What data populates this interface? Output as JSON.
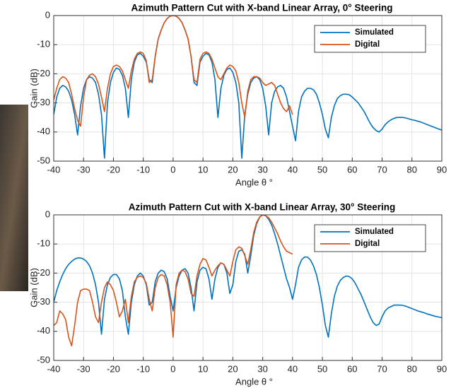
{
  "chart_data": [
    {
      "type": "line",
      "title": "Azimuth Pattern Cut with X-band Linear Array, 0° Steering",
      "x_label": "Angle θ °",
      "y_label": "Gain (dB)",
      "x": [
        -40,
        -39,
        -38,
        -37,
        -36,
        -35,
        -34,
        -33,
        -32,
        -31,
        -30,
        -29,
        -28,
        -27,
        -26,
        -25,
        -24,
        -23,
        -22,
        -21,
        -20,
        -19,
        -18,
        -17,
        -16,
        -15,
        -14,
        -13,
        -12,
        -11,
        -10,
        -9,
        -8,
        -7,
        -6,
        -5,
        -4,
        -3,
        -2,
        -1,
        0,
        1,
        2,
        3,
        4,
        5,
        6,
        7,
        8,
        9,
        10,
        11,
        12,
        13,
        14,
        15,
        16,
        17,
        18,
        19,
        20,
        21,
        22,
        23,
        24,
        25,
        26,
        27,
        28,
        29,
        30,
        31,
        32,
        33,
        34,
        35,
        36,
        37,
        38,
        39,
        40,
        41,
        42,
        43,
        44,
        45,
        46,
        47,
        48,
        49,
        50,
        51,
        52,
        53,
        54,
        55,
        56,
        57,
        58,
        59,
        60,
        61,
        62,
        63,
        64,
        65,
        66,
        67,
        68,
        69,
        70,
        71,
        72,
        73,
        74,
        75,
        76,
        77,
        78,
        79,
        80,
        81,
        82,
        83,
        84,
        85,
        86,
        87,
        88,
        89,
        90
      ],
      "series": [
        {
          "name": "Simulated",
          "color": "#0072bd",
          "values": [
            -34,
            -28,
            -25,
            -24,
            -24.5,
            -26,
            -29,
            -34,
            -41,
            -31,
            -25,
            -22,
            -21,
            -21.5,
            -23,
            -27,
            -34,
            -49,
            -30,
            -23,
            -19.5,
            -18,
            -18.5,
            -20.5,
            -25,
            -35,
            -22,
            -16,
            -13.5,
            -13,
            -14,
            -16,
            -22,
            -23,
            -14,
            -8,
            -5,
            -2.5,
            -1,
            -0.2,
            0,
            -0.2,
            -1,
            -2.5,
            -5,
            -8,
            -14,
            -23,
            -24,
            -16,
            -14,
            -13,
            -13.5,
            -16,
            -22,
            -35,
            -25,
            -20.5,
            -18.5,
            -18,
            -19.5,
            -23,
            -30,
            -49,
            -34,
            -27,
            -23,
            -21.5,
            -21,
            -22,
            -25,
            -31,
            -41,
            -30,
            -26,
            -24.5,
            -24,
            -25,
            -28,
            -33,
            -38,
            -43,
            -33,
            -28,
            -26,
            -25,
            -25,
            -25.5,
            -27,
            -30,
            -34,
            -39,
            -42,
            -35,
            -31,
            -28.5,
            -27.5,
            -27,
            -27,
            -27.2,
            -28,
            -29,
            -30,
            -31.5,
            -33,
            -35,
            -37,
            -38.5,
            -39.5,
            -40,
            -39,
            -37.5,
            -36.5,
            -35.8,
            -35.3,
            -35,
            -35,
            -35,
            -35.2,
            -35.5,
            -35.8,
            -36,
            -36.3,
            -36.6,
            -37,
            -37.4,
            -37.8,
            -38.2,
            -38.6,
            -39,
            -39.3
          ]
        },
        {
          "name": "Digital",
          "color": "#d95319",
          "values": [
            -29,
            -25,
            -22,
            -21,
            -21.5,
            -23,
            -27,
            -32,
            -36,
            -38,
            -28,
            -22,
            -20.5,
            -20,
            -21,
            -23.5,
            -28,
            -33,
            -25,
            -20,
            -17.5,
            -17,
            -17.5,
            -19,
            -22,
            -25,
            -19,
            -15,
            -13,
            -12.5,
            -13,
            -15.5,
            -23,
            -22,
            -14,
            -8,
            -5,
            -2.5,
            -1,
            -0.2,
            0,
            -0.2,
            -1,
            -2.5,
            -5,
            -8,
            -14,
            -22,
            -23,
            -15,
            -13,
            -12.5,
            -13,
            -15,
            -18,
            -21,
            -22,
            -20,
            -18,
            -17,
            -17.5,
            -19,
            -23,
            -30,
            -35,
            -26,
            -22,
            -21,
            -21,
            -21.5,
            -23,
            -24,
            -23.5,
            -23,
            -24,
            -27,
            -30,
            -32,
            -33,
            -31,
            -34,
            null,
            null,
            null,
            null,
            null,
            null,
            null,
            null,
            null,
            null,
            null,
            null,
            null,
            null,
            null,
            null,
            null,
            null,
            null,
            null,
            null,
            null,
            null,
            null,
            null,
            null,
            null,
            null,
            null,
            null,
            null,
            null,
            null,
            null,
            null,
            null,
            null,
            null,
            null,
            null,
            null,
            null,
            null,
            null,
            null,
            null,
            null,
            null,
            null,
            null
          ]
        }
      ],
      "xlim": [
        -40,
        90
      ],
      "xticks": [
        -40,
        -30,
        -20,
        -10,
        0,
        10,
        20,
        30,
        40,
        50,
        60,
        70,
        80,
        90
      ],
      "ylim": [
        -50,
        0
      ],
      "yticks": [
        -50,
        -40,
        -30,
        -20,
        -10,
        0
      ],
      "grid": true,
      "legend": "upper right"
    },
    {
      "type": "line",
      "title": "Azimuth Pattern Cut with X-band Linear Array, 30° Steering",
      "x_label": "Angle θ °",
      "y_label": "Gain (dB)",
      "x": [
        -40,
        -39,
        -38,
        -37,
        -36,
        -35,
        -34,
        -33,
        -32,
        -31,
        -30,
        -29,
        -28,
        -27,
        -26,
        -25,
        -24,
        -23,
        -22,
        -21,
        -20,
        -19,
        -18,
        -17,
        -16,
        -15,
        -14,
        -13,
        -12,
        -11,
        -10,
        -9,
        -8,
        -7,
        -6,
        -5,
        -4,
        -3,
        -2,
        -1,
        0,
        1,
        2,
        3,
        4,
        5,
        6,
        7,
        8,
        9,
        10,
        11,
        12,
        13,
        14,
        15,
        16,
        17,
        18,
        19,
        20,
        21,
        22,
        23,
        24,
        25,
        26,
        27,
        28,
        29,
        30,
        31,
        32,
        33,
        34,
        35,
        36,
        37,
        38,
        39,
        40,
        41,
        42,
        43,
        44,
        45,
        46,
        47,
        48,
        49,
        50,
        51,
        52,
        53,
        54,
        55,
        56,
        57,
        58,
        59,
        60,
        61,
        62,
        63,
        64,
        65,
        66,
        67,
        68,
        69,
        70,
        71,
        72,
        73,
        74,
        75,
        76,
        77,
        78,
        79,
        80,
        81,
        82,
        83,
        84,
        85,
        86,
        87,
        88,
        89,
        90
      ],
      "series": [
        {
          "name": "Simulated",
          "color": "#0072bd",
          "values": [
            -30,
            -26,
            -23,
            -20.5,
            -18.5,
            -17,
            -16,
            -15.2,
            -14.8,
            -14.8,
            -15.2,
            -16,
            -17.5,
            -20,
            -24,
            -30,
            -41,
            -29,
            -24,
            -21.5,
            -20.5,
            -20.5,
            -22,
            -26,
            -35,
            -41,
            -30,
            -24,
            -21,
            -20,
            -21,
            -24,
            -31,
            -30,
            -23,
            -20,
            -19,
            -19.5,
            -22,
            -28,
            -33,
            -25,
            -21,
            -19,
            -18.5,
            -20,
            -25,
            -33,
            -23,
            -19,
            -18,
            -18.5,
            -22,
            -29,
            -22,
            -18,
            -16.5,
            -17,
            -20,
            -27,
            -24,
            -16,
            -12.5,
            -12,
            -13.5,
            -20,
            -14,
            -7,
            -3,
            -0.8,
            0,
            -0.3,
            -1.5,
            -3.5,
            -6.5,
            -10,
            -14,
            -18,
            -22,
            -25,
            -29,
            -24,
            -18,
            -15.5,
            -14.5,
            -14.5,
            -15.5,
            -17.5,
            -20.5,
            -25,
            -31,
            -38,
            -42,
            -34,
            -28,
            -24.5,
            -22.5,
            -21.5,
            -21,
            -21.2,
            -22,
            -23.5,
            -25.5,
            -27.5,
            -30,
            -32.5,
            -35,
            -37,
            -38,
            -37.5,
            -35,
            -33,
            -32,
            -31.5,
            -31,
            -31,
            -31,
            -31.1,
            -31.4,
            -31.8,
            -32.2,
            -32.6,
            -33,
            -33.3,
            -33.6,
            -34,
            -34.3,
            -34.6,
            -34.9,
            -35.1,
            -35.3
          ]
        },
        {
          "name": "Digital",
          "color": "#d95319",
          "values": [
            -38,
            -37,
            -33,
            -34,
            -36,
            -42,
            -45,
            -38,
            -30,
            -26,
            -25.5,
            -25.5,
            -26,
            -30,
            -35,
            -37,
            -30,
            -25,
            -23,
            -24,
            -26,
            -30,
            -35,
            -33,
            -29,
            -37,
            -28,
            -23,
            -21.5,
            -21,
            -21.5,
            -23.5,
            -29,
            -33,
            -25,
            -21.5,
            -20.5,
            -21,
            -24,
            -30,
            -42,
            -24,
            -20,
            -19,
            -19.5,
            -22,
            -27,
            -28,
            -21,
            -17,
            -15,
            -15.5,
            -18,
            -21,
            -19,
            -17.5,
            -16.5,
            -17,
            -19,
            -21,
            -16,
            -12,
            -11,
            -11.5,
            -14,
            -17,
            -12,
            -6,
            -2.5,
            -0.7,
            0,
            -0.3,
            -1,
            -2.5,
            -4.5,
            -6.5,
            -9,
            -11,
            -12.5,
            -13,
            -13.5,
            null,
            null,
            null,
            null,
            null,
            null,
            null,
            null,
            null,
            null,
            null,
            null,
            null,
            null,
            null,
            null,
            null,
            null,
            null,
            null,
            null,
            null,
            null,
            null,
            null,
            null,
            null,
            null,
            null,
            null,
            null,
            null,
            null,
            null,
            null,
            null,
            null,
            null,
            null,
            null,
            null,
            null,
            null,
            null,
            null,
            null,
            null,
            null,
            null,
            null
          ]
        }
      ],
      "xlim": [
        -40,
        90
      ],
      "xticks": [
        -40,
        -30,
        -20,
        -10,
        0,
        10,
        20,
        30,
        40,
        50,
        60,
        70,
        80,
        90
      ],
      "ylim": [
        -50,
        0
      ],
      "yticks": [
        -50,
        -40,
        -30,
        -20,
        -10,
        0
      ],
      "grid": true,
      "legend": "upper right"
    }
  ]
}
